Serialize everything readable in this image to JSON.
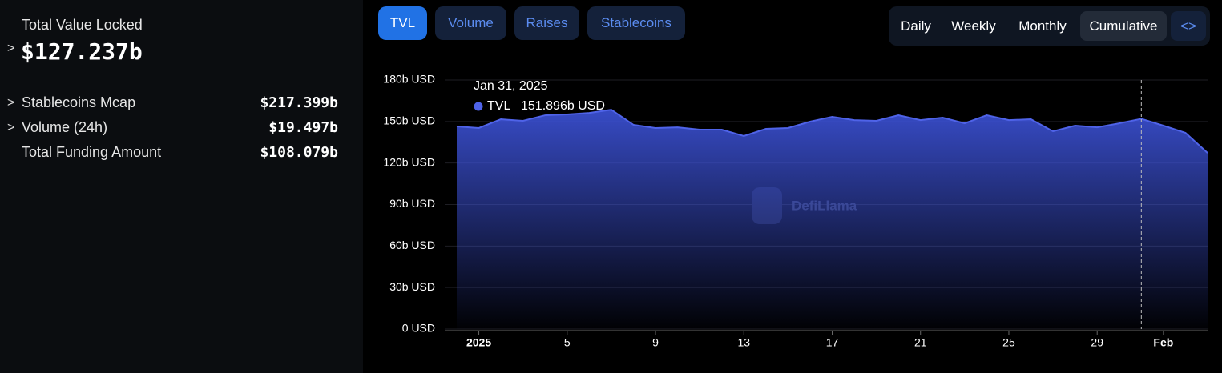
{
  "summary": {
    "tvl_label": "Total Value Locked",
    "tvl_value": "$127.237b",
    "rows": [
      {
        "label": "Stablecoins Mcap",
        "value": "$217.399b"
      },
      {
        "label": "Volume (24h)",
        "value": "$19.497b"
      },
      {
        "label": "Total Funding Amount",
        "value": "$108.079b"
      }
    ]
  },
  "tabs": [
    "TVL",
    "Volume",
    "Raises",
    "Stablecoins"
  ],
  "periods": [
    "Daily",
    "Weekly",
    "Monthly",
    "Cumulative"
  ],
  "embed": "<>",
  "chart_data": {
    "type": "area",
    "watermark": "DefiLlama",
    "categories": [
      "Dec 31",
      "Jan 1",
      "Jan 2",
      "Jan 3",
      "Jan 4",
      "Jan 5",
      "Jan 6",
      "Jan 7",
      "Jan 8",
      "Jan 9",
      "Jan 10",
      "Jan 11",
      "Jan 12",
      "Jan 13",
      "Jan 14",
      "Jan 15",
      "Jan 16",
      "Jan 17",
      "Jan 18",
      "Jan 19",
      "Jan 20",
      "Jan 21",
      "Jan 22",
      "Jan 23",
      "Jan 24",
      "Jan 25",
      "Jan 26",
      "Jan 27",
      "Jan 28",
      "Jan 29",
      "Jan 30",
      "Jan 31",
      "Feb 1",
      "Feb 2",
      "Feb 3"
    ],
    "series": [
      {
        "name": "TVL",
        "color": "#4f63e8",
        "values": [
          146.4,
          145.3,
          151.6,
          150.5,
          154.5,
          155.1,
          156.2,
          158.5,
          147.6,
          145.3,
          145.8,
          144.1,
          144.1,
          139.5,
          144.7,
          145.3,
          149.9,
          153.4,
          151.0,
          150.5,
          154.5,
          151.0,
          152.8,
          148.7,
          154.5,
          151.0,
          151.6,
          142.9,
          147.0,
          145.8,
          148.7,
          151.896,
          147.0,
          141.8,
          127.237
        ]
      }
    ],
    "ylim": [
      0,
      180
    ],
    "yticks": [
      {
        "value": 0,
        "label": "0 USD"
      },
      {
        "value": 30,
        "label": "30b USD"
      },
      {
        "value": 60,
        "label": "60b USD"
      },
      {
        "value": 90,
        "label": "90b USD"
      },
      {
        "value": 120,
        "label": "120b USD"
      },
      {
        "value": 150,
        "label": "150b USD"
      },
      {
        "value": 180,
        "label": "180b USD"
      }
    ],
    "xticks": [
      {
        "value": "Jan 1",
        "label": "2025"
      },
      {
        "value": "Jan 5",
        "label": "5"
      },
      {
        "value": "Jan 9",
        "label": "9"
      },
      {
        "value": "Jan 13",
        "label": "13"
      },
      {
        "value": "Jan 17",
        "label": "17"
      },
      {
        "value": "Jan 21",
        "label": "21"
      },
      {
        "value": "Jan 25",
        "label": "25"
      },
      {
        "value": "Jan 29",
        "label": "29"
      },
      {
        "value": "Feb 1",
        "label": "Feb"
      }
    ],
    "grid": true,
    "tooltip": {
      "category": "Jan 31",
      "date": "Jan 31, 2025",
      "value_label": "151.896b USD"
    }
  }
}
